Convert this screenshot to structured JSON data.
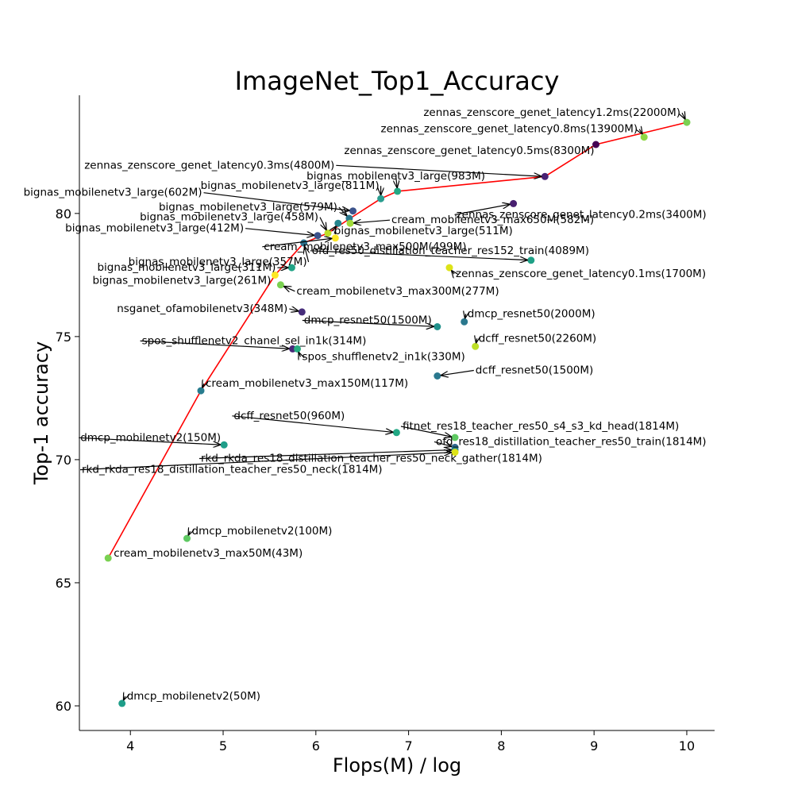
{
  "chart_data": {
    "type": "scatter",
    "title": "ImageNet_Top1_Accuracy",
    "xlabel": "Flops(M) / log",
    "ylabel": "Top-1 accuracy",
    "xlim": [
      3.45,
      10.3
    ],
    "ylim": [
      59.0,
      84.8
    ],
    "xticks": [
      4,
      5,
      6,
      7,
      8,
      9,
      10
    ],
    "yticks": [
      60,
      65,
      70,
      75,
      80
    ],
    "grid": false,
    "legend": "none",
    "fit_line_color": "#ff0000",
    "pareto_line": [
      {
        "x": 3.76,
        "y": 66.0
      },
      {
        "x": 4.76,
        "y": 72.8
      },
      {
        "x": 5.56,
        "y": 77.5
      },
      {
        "x": 5.87,
        "y": 78.8
      },
      {
        "x": 6.13,
        "y": 79.2
      },
      {
        "x": 6.37,
        "y": 79.8
      },
      {
        "x": 6.7,
        "y": 80.6
      },
      {
        "x": 6.88,
        "y": 80.9
      },
      {
        "x": 8.47,
        "y": 81.5
      },
      {
        "x": 9.02,
        "y": 82.8
      },
      {
        "x": 10.0,
        "y": 83.7
      }
    ],
    "points": [
      {
        "label": "zennas_zenscore_genet_latency1.2ms(22000M)",
        "x": 10.0,
        "y": 83.7,
        "color": "#7ad151"
      },
      {
        "label": "zennas_zenscore_genet_latency0.8ms(13900M)",
        "x": 9.54,
        "y": 83.1,
        "color": "#8fd744"
      },
      {
        "label": "zennas_zenscore_genet_latency0.5ms(8300M)",
        "x": 9.02,
        "y": 82.8,
        "color": "#440154"
      },
      {
        "label": "zennas_zenscore_genet_latency0.3ms(4800M)",
        "x": 8.47,
        "y": 81.5,
        "color": "#482173"
      },
      {
        "label": "bignas_mobilenetv3_large(983M)",
        "x": 6.88,
        "y": 80.9,
        "color": "#22a884"
      },
      {
        "label": "bignas_mobilenetv3_large(811M)",
        "x": 6.7,
        "y": 80.6,
        "color": "#2a9d8f"
      },
      {
        "label": "bignas_mobilenetv3_large(602M)",
        "x": 6.4,
        "y": 80.1,
        "color": "#3b528b"
      },
      {
        "label": "zennas_zenscore_genet_latency0.2ms(3400M)",
        "x": 8.13,
        "y": 80.4,
        "color": "#481f70"
      },
      {
        "label": "bignas_mobilenetv3_large(579M)",
        "x": 6.36,
        "y": 79.8,
        "color": "#2a788e"
      },
      {
        "label": "cream_mobilenetv3_max650M(582M)",
        "x": 6.37,
        "y": 79.6,
        "color": "#a0da39"
      },
      {
        "label": "bignas_mobilenetv3_large(511M)",
        "x": 6.24,
        "y": 79.6,
        "color": "#25858e"
      },
      {
        "label": "bignas_mobilenetv3_large(458M)",
        "x": 6.13,
        "y": 79.2,
        "color": "#bddf26"
      },
      {
        "label": "bignas_mobilenetv3_large(412M)",
        "x": 6.02,
        "y": 79.1,
        "color": "#3b528b"
      },
      {
        "label": "cream_mobilenetv3_max500M(499M)",
        "x": 6.21,
        "y": 79.0,
        "color": "#fde725"
      },
      {
        "label": "ofd_res50_distillation_teacher_res152_train(4089M)",
        "x": 8.32,
        "y": 78.1,
        "color": "#1fa187"
      },
      {
        "label": "bignas_mobilenetv3_large(357M)",
        "x": 5.87,
        "y": 78.8,
        "color": "#2c728e"
      },
      {
        "label": "bignas_mobilenetv3_large(311M)",
        "x": 5.74,
        "y": 77.8,
        "color": "#20a386"
      },
      {
        "label": "zennas_zenscore_genet_latency0.1ms(1700M)",
        "x": 7.44,
        "y": 77.8,
        "color": "#dde318"
      },
      {
        "label": "bignas_mobilenetv3_large(261M)",
        "x": 5.56,
        "y": 77.5,
        "color": "#fde725"
      },
      {
        "label": "cream_mobilenetv3_max300M(277M)",
        "x": 5.62,
        "y": 77.1,
        "color": "#7ad151"
      },
      {
        "label": "nsganet_ofamobilenetv3(348M)",
        "x": 5.85,
        "y": 76.0,
        "color": "#472d7b"
      },
      {
        "label": "dmcp_resnet50(2000M)",
        "x": 7.6,
        "y": 75.6,
        "color": "#2a788e"
      },
      {
        "label": "dmcp_resnet50(1500M)",
        "x": 7.31,
        "y": 75.4,
        "color": "#21918c"
      },
      {
        "label": "dcff_resnet50(2260M)",
        "x": 7.72,
        "y": 74.6,
        "color": "#bddf26"
      },
      {
        "label": "spos_shufflenetv2_chanel_sel_in1k(314M)",
        "x": 5.75,
        "y": 74.5,
        "color": "#482878"
      },
      {
        "label": "spos_shufflenetv2_in1k(330M)",
        "x": 5.8,
        "y": 74.5,
        "color": "#27ad81"
      },
      {
        "label": "dcff_resnet50(1500M)",
        "x": 7.31,
        "y": 73.4,
        "color": "#2a788e"
      },
      {
        "label": "cream_mobilenetv3_max150M(117M)",
        "x": 4.76,
        "y": 72.8,
        "color": "#287c8e"
      },
      {
        "label": "fitnet_res18_teacher_res50_s4_s3_kd_head(1814M)",
        "x": 7.5,
        "y": 70.9,
        "color": "#5ec962"
      },
      {
        "label": "dcff_resnet50(960M)",
        "x": 6.87,
        "y": 71.1,
        "color": "#22a884"
      },
      {
        "label": "ofd_res18_distillation_teacher_res50_train(1814M)",
        "x": 7.5,
        "y": 70.5,
        "color": "#31688e"
      },
      {
        "label": "rkd_rkda_res18_distillation_teacher_res50_neck_gather(1814M)",
        "x": 7.5,
        "y": 70.4,
        "color": "#26828e"
      },
      {
        "label": "rkd_rkda_res18_distillation_teacher_res50_neck(1814M)",
        "x": 7.5,
        "y": 70.3,
        "color": "#dde318"
      },
      {
        "label": "dmcp_mobilenetv2(150M)",
        "x": 5.01,
        "y": 70.6,
        "color": "#1f9e89"
      },
      {
        "label": "dmcp_mobilenetv2(100M)",
        "x": 4.61,
        "y": 66.8,
        "color": "#5ec962"
      },
      {
        "label": "cream_mobilenetv3_max50M(43M)",
        "x": 3.76,
        "y": 66.0,
        "color": "#7ad151"
      },
      {
        "label": "dmcp_mobilenetv2(50M)",
        "x": 3.91,
        "y": 60.1,
        "color": "#1f9e89"
      }
    ]
  }
}
